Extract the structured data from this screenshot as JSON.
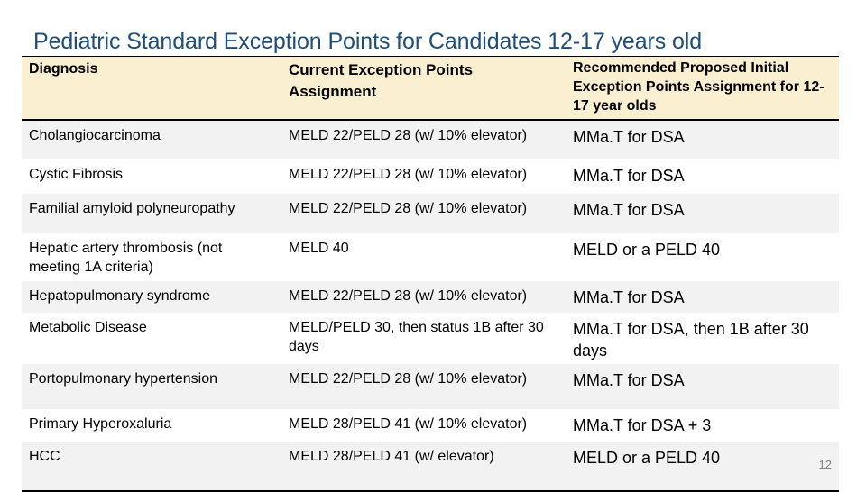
{
  "slide": {
    "title": "Pediatric Standard Exception Points for Candidates 12-17 years old",
    "page_number": "12"
  },
  "table": {
    "headers": [
      "Diagnosis",
      "Current Exception Points Assignment",
      "Recommended Proposed Initial Exception Points Assignment for 12-17 year olds"
    ],
    "rows": [
      {
        "diagnosis": "Cholangiocarcinoma",
        "current": "MELD 22/PELD 28 (w/ 10% elevator)",
        "proposed": "MMa.T for DSA"
      },
      {
        "diagnosis": "Cystic Fibrosis",
        "current": "MELD 22/PELD 28 (w/ 10% elevator)",
        "proposed": "MMa.T for DSA"
      },
      {
        "diagnosis": "Familial amyloid polyneuropathy",
        "current": "MELD 22/PELD 28 (w/ 10% elevator)",
        "proposed": "MMa.T for DSA"
      },
      {
        "diagnosis": "Hepatic artery thrombosis (not meeting 1A criteria)",
        "current": "MELD 40",
        "proposed": "MELD or a PELD 40"
      },
      {
        "diagnosis": "Hepatopulmonary syndrome",
        "current": "MELD 22/PELD 28 (w/ 10% elevator)",
        "proposed": "MMa.T for DSA"
      },
      {
        "diagnosis": "Metabolic Disease",
        "current": "MELD/PELD 30, then status 1B after 30 days",
        "proposed": "MMa.T for DSA, then 1B after 30 days"
      },
      {
        "diagnosis": "Portopulmonary hypertension",
        "current": "MELD 22/PELD 28 (w/ 10% elevator)",
        "proposed": "MMa.T for DSA"
      },
      {
        "diagnosis": "Primary Hyperoxaluria",
        "current": "MELD 28/PELD 41 (w/ 10% elevator)",
        "proposed": "MMa.T for DSA + 3"
      },
      {
        "diagnosis": "HCC",
        "current": "MELD 28/PELD 41 (w/ elevator)",
        "proposed": "MELD or a PELD 40"
      }
    ]
  }
}
